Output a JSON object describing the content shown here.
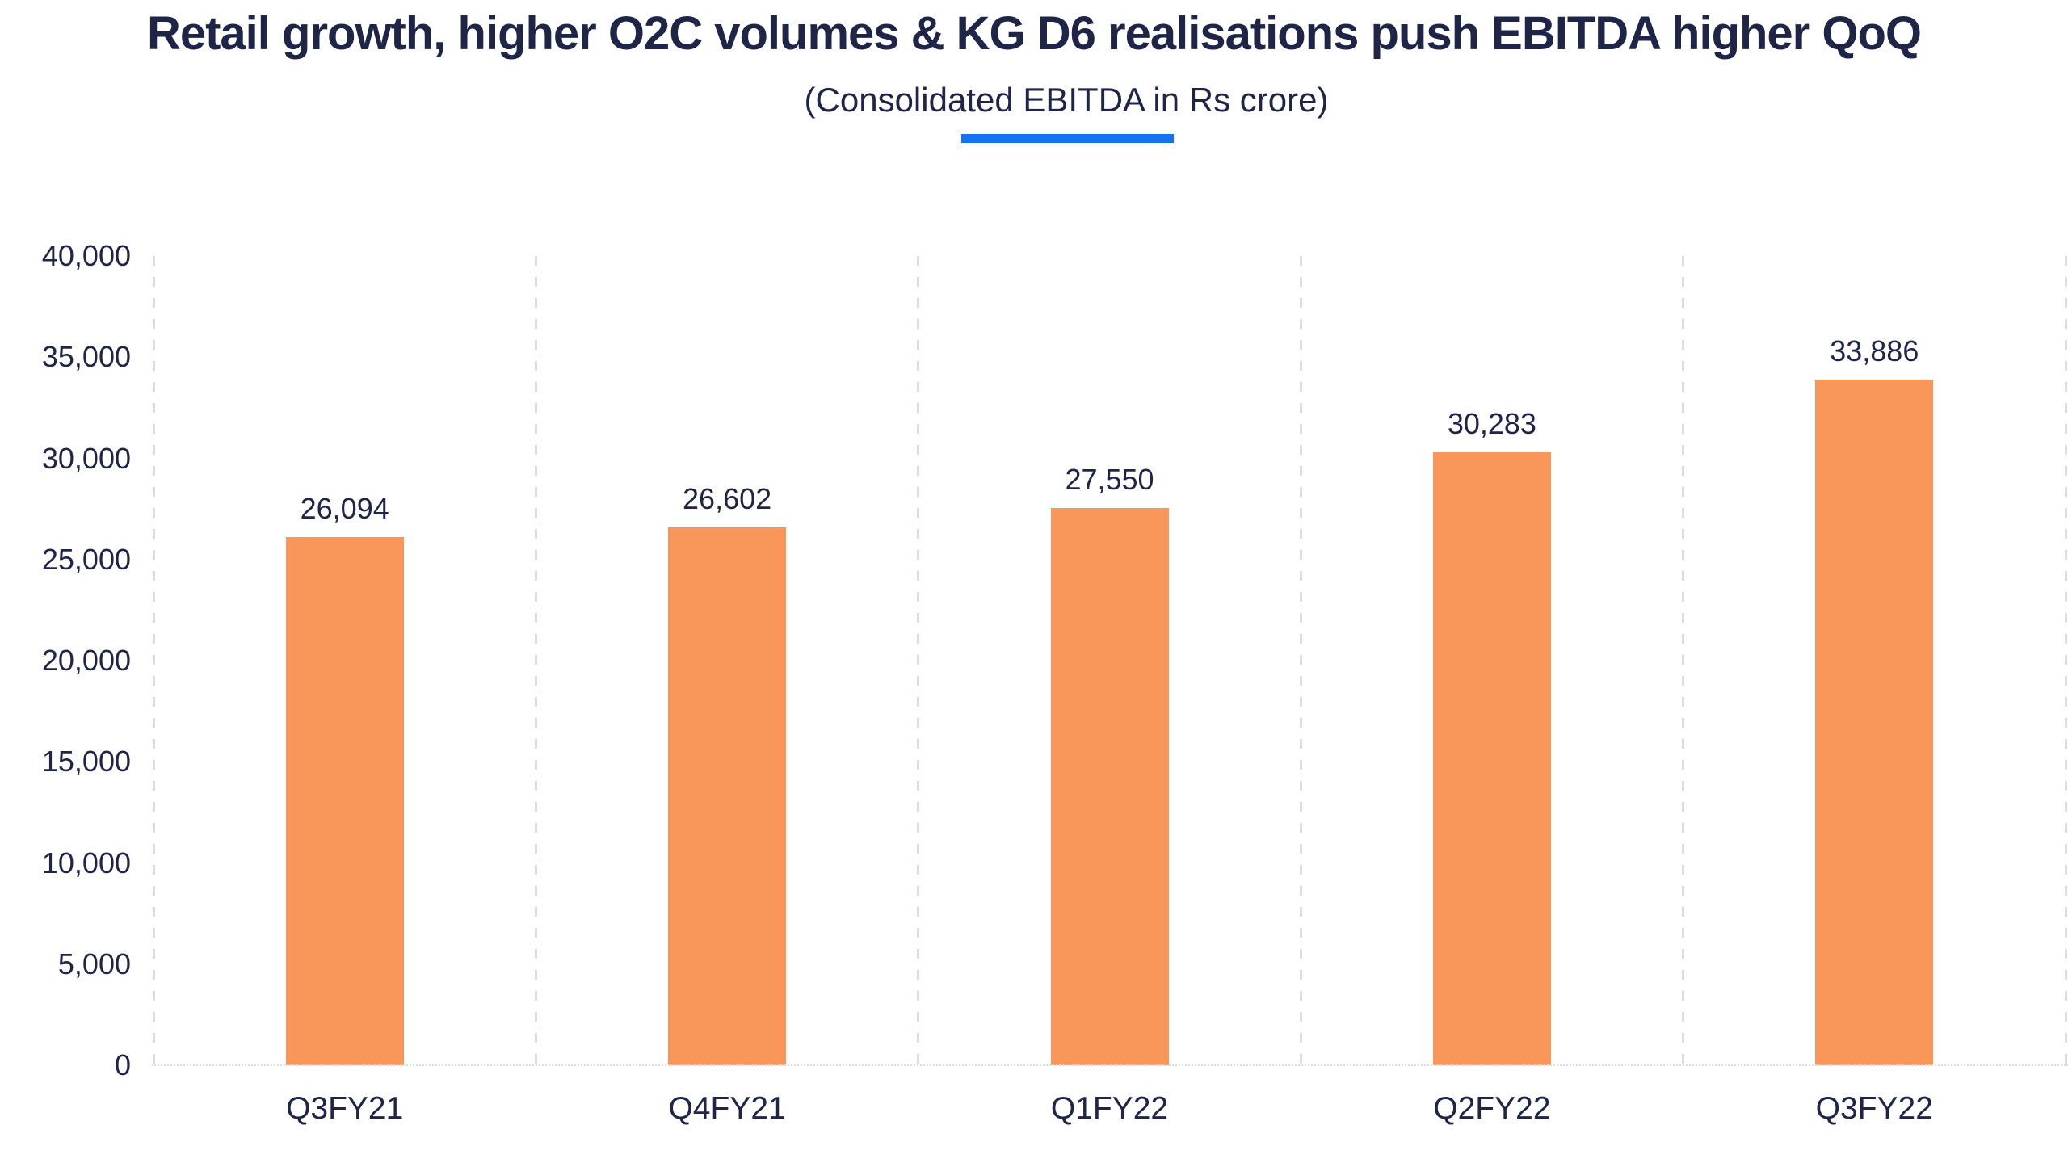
{
  "header": {
    "title": "Retail growth, higher O2C volumes & KG D6 realisations push EBITDA higher QoQ",
    "subtitle": "(Consolidated EBITDA in Rs crore)"
  },
  "colors": {
    "background": "#FFFFFF",
    "text_navy": "#1F2547",
    "bar_orange": "#F99659",
    "accent_blue": "#1473F2",
    "gridline_gray": "#DCDCDC"
  },
  "chart_data": {
    "type": "bar",
    "title": "Retail growth, higher O2C volumes & KG D6 realisations push EBITDA higher QoQ",
    "subtitle": "(Consolidated EBITDA in Rs crore)",
    "categories": [
      "Q3FY21",
      "Q4FY21",
      "Q1FY22",
      "Q2FY22",
      "Q3FY22"
    ],
    "values": [
      26094,
      26602,
      27550,
      30283,
      33886
    ],
    "value_labels": [
      "26,094",
      "26,602",
      "27,550",
      "30,283",
      "33,886"
    ],
    "ylim": [
      0,
      40000
    ],
    "ytick_step": 5000,
    "ytick_labels": [
      "0",
      "5,000",
      "10,000",
      "15,000",
      "20,000",
      "25,000",
      "30,000",
      "35,000",
      "40,000"
    ],
    "xlabel": "",
    "ylabel": "",
    "grid": "vertical-dashed",
    "legend": "none",
    "bar_color": "#F99659"
  }
}
